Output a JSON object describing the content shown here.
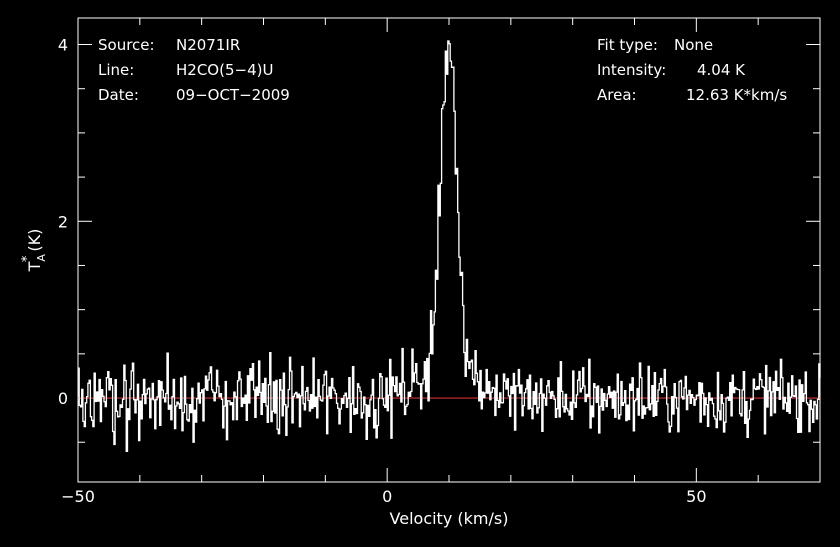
{
  "chart_data": {
    "type": "line",
    "xlabel": "Velocity (km/s)",
    "ylabel": {
      "main": "T",
      "sub": "A",
      "sup": "*",
      "unit": "(K)"
    },
    "xlim": [
      -50,
      70
    ],
    "ylim": [
      -0.95,
      4.3
    ],
    "x_ticks": [
      {
        "value": -50,
        "label": "−50"
      },
      {
        "value": 0,
        "label": "0"
      },
      {
        "value": 50,
        "label": "50"
      }
    ],
    "x_minor_step": 10,
    "y_ticks": [
      {
        "value": 0,
        "label": "0"
      },
      {
        "value": 2,
        "label": "2"
      },
      {
        "value": 4,
        "label": "4"
      }
    ],
    "y_minor_step": 0.5,
    "grid": false,
    "baseline": {
      "value": 0,
      "color": "#d03030"
    },
    "series": [
      {
        "color": "#ffffff",
        "x_start": -50,
        "x_step": 0.2,
        "noise_rms": 0.2,
        "peak": {
          "center": 9.9,
          "amplitude": 4.04,
          "sigma": 1.25,
          "wing_amplitude": 0.45,
          "wing_sigma": 4.0
        }
      }
    ],
    "annotations_left": [
      {
        "label": "Source:",
        "value": "N2071IR"
      },
      {
        "label": "Line:",
        "value": "H2CO(5−4)U"
      },
      {
        "label": "Date:",
        "value": "09−OCT−2009"
      }
    ],
    "annotations_right": [
      {
        "label": "Fit type:",
        "value": "None"
      },
      {
        "label": "Intensity:",
        "value": "4.04 K"
      },
      {
        "label": "Area:",
        "value": "12.63 K*km/s"
      }
    ]
  }
}
